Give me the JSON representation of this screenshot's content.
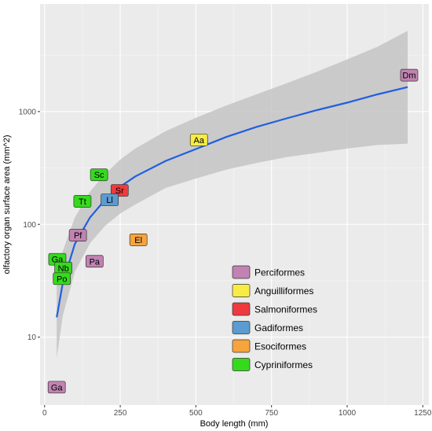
{
  "chart_data": {
    "type": "scatter",
    "xlabel": "Body length (mm)",
    "ylabel": "olfactory organ surface area (mm^2)",
    "xlim": [
      -15,
      1270
    ],
    "ylim": [
      2.5,
      9000
    ],
    "y_scale": "log10",
    "grid": true,
    "legend_position": "bottom-center",
    "x_ticks": [
      0,
      250,
      500,
      750,
      1000,
      1250
    ],
    "y_ticks": [
      10,
      100,
      1000
    ],
    "x_tick_labels": [
      "0",
      "250",
      "500",
      "750",
      "1000",
      "1250"
    ],
    "y_tick_labels": [
      "10",
      "100",
      "1000"
    ],
    "colors": {
      "panel": "#ebebeb",
      "grid_major": "#ffffff",
      "ribbon": "#c4c4c4",
      "fit_line": "#1f5fe0"
    },
    "groups": [
      {
        "name": "Perciformes",
        "color": "#c183b2"
      },
      {
        "name": "Anguilliformes",
        "color": "#f7ec44"
      },
      {
        "name": "Salmoniformes",
        "color": "#ee3a3e"
      },
      {
        "name": "Gadiformes",
        "color": "#5b9bd0"
      },
      {
        "name": "Esociformes",
        "color": "#f7a43d"
      },
      {
        "name": "Cypriniformes",
        "color": "#35da1d"
      }
    ],
    "points": [
      {
        "label": "Dm",
        "x": 1205,
        "y": 2100,
        "group": "Perciformes"
      },
      {
        "label": "Aa",
        "x": 510,
        "y": 560,
        "group": "Anguilliformes"
      },
      {
        "label": "Sc",
        "x": 180,
        "y": 275,
        "group": "Cypriniformes"
      },
      {
        "label": "Sr",
        "x": 248,
        "y": 200,
        "group": "Salmoniformes"
      },
      {
        "label": "Tt",
        "x": 125,
        "y": 160,
        "group": "Cypriniformes"
      },
      {
        "label": "Ll",
        "x": 215,
        "y": 165,
        "group": "Gadiformes"
      },
      {
        "label": "Pf",
        "x": 110,
        "y": 80,
        "group": "Perciformes"
      },
      {
        "label": "El",
        "x": 310,
        "y": 73,
        "group": "Esociformes"
      },
      {
        "label": "Pa",
        "x": 165,
        "y": 47,
        "group": "Perciformes"
      },
      {
        "label": "Ga",
        "x": 42,
        "y": 49,
        "group": "Cypriniformes"
      },
      {
        "label": "Nb",
        "x": 62,
        "y": 41,
        "group": "Cypriniformes"
      },
      {
        "label": "Po",
        "x": 57,
        "y": 33,
        "group": "Cypriniformes"
      },
      {
        "label": "Ga",
        "x": 40,
        "y": 3.6,
        "group": "Perciformes"
      }
    ],
    "fit_curve": {
      "x": [
        40,
        60,
        100,
        150,
        200,
        250,
        300,
        400,
        500,
        600,
        700,
        800,
        900,
        1000,
        1100,
        1200
      ],
      "y": [
        15,
        30,
        67,
        115,
        165,
        216,
        266,
        365,
        465,
        595,
        730,
        870,
        1030,
        1200,
        1420,
        1650
      ]
    },
    "ribbon": {
      "x": [
        40,
        60,
        100,
        150,
        200,
        250,
        300,
        400,
        500,
        600,
        700,
        800,
        900,
        1000,
        1100,
        1200
      ],
      "upper": [
        34,
        58,
        115,
        195,
        280,
        375,
        470,
        670,
        880,
        1130,
        1420,
        1780,
        2250,
        2900,
        3750,
        5200
      ],
      "lower": [
        6.5,
        15.5,
        38,
        68,
        97,
        125,
        150,
        210,
        255,
        305,
        350,
        395,
        430,
        470,
        505,
        520
      ]
    }
  }
}
